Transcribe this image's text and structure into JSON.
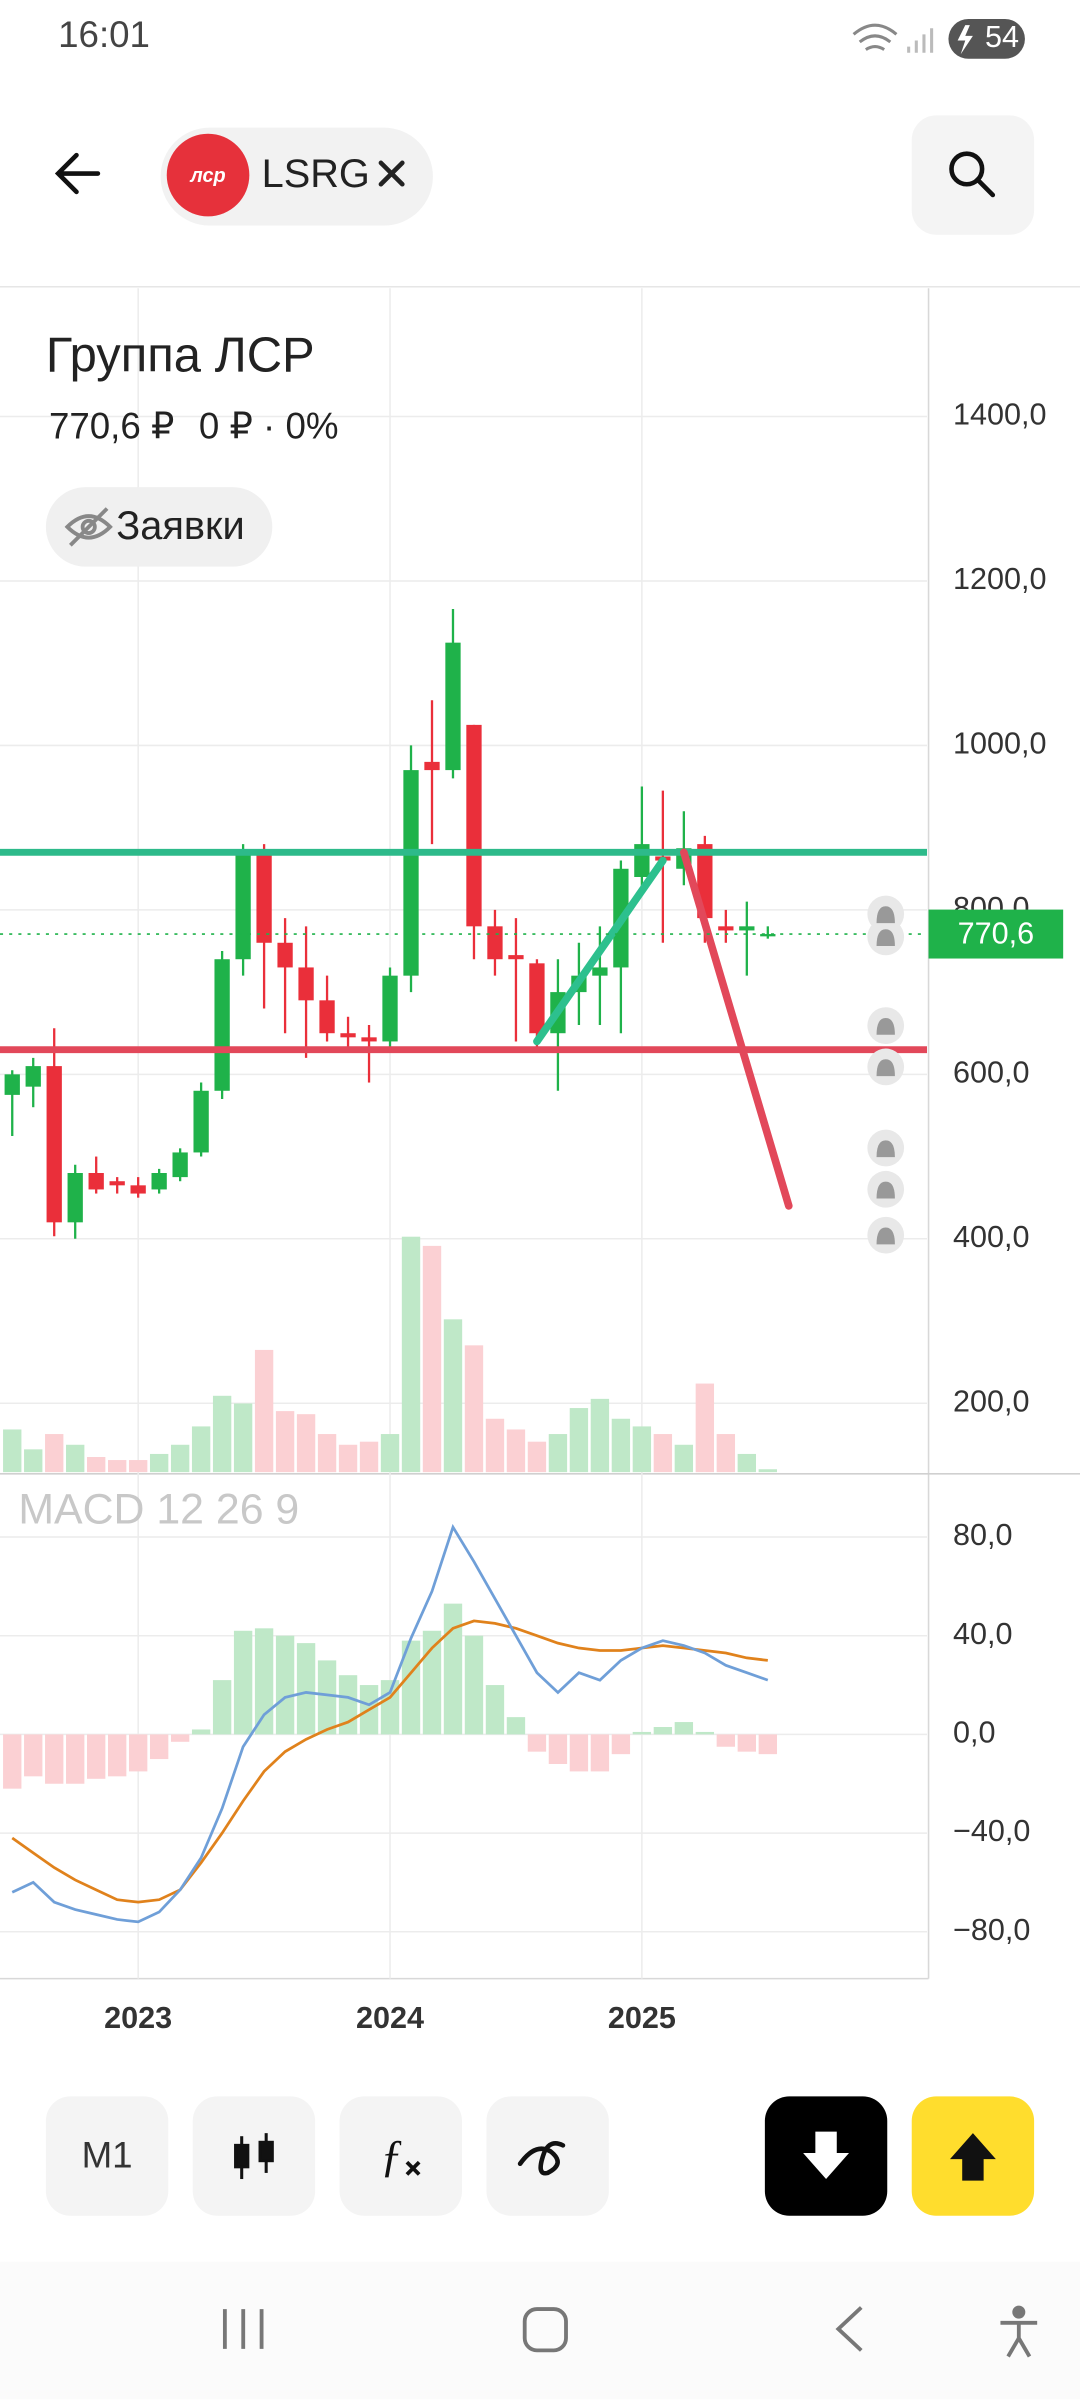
{
  "status_bar": {
    "time": "16:01",
    "battery": "54"
  },
  "header": {
    "logo": "лср",
    "ticker": "LSRG"
  },
  "quote": {
    "price": "770,6 ₽",
    "change": "0 ₽ · 0%"
  },
  "orders_button": "Заявки",
  "period_button": "M1",
  "chart_data": [
    {
      "type": "candlestick",
      "title": "Группа ЛСР",
      "categories": [
        null,
        null,
        null,
        null,
        null,
        null,
        "2023",
        null,
        null,
        null,
        null,
        null,
        null,
        null,
        null,
        null,
        null,
        null,
        "2024",
        null,
        null,
        null,
        null,
        null,
        null,
        null,
        null,
        null,
        null,
        null,
        "2025",
        null,
        null,
        null,
        null,
        null,
        null
      ],
      "open": [
        575,
        585,
        610,
        420,
        480,
        470,
        465,
        460,
        475,
        505,
        580,
        740,
        870,
        760,
        730,
        690,
        650,
        645,
        640,
        720,
        980,
        970,
        1025,
        780,
        745,
        735,
        650,
        700,
        720,
        730,
        840,
        865,
        850,
        880,
        780,
        775,
        770.6
      ],
      "high": [
        605,
        620,
        656,
        490,
        500,
        475,
        475,
        485,
        510,
        590,
        750,
        880,
        880,
        790,
        780,
        720,
        670,
        660,
        730,
        1000,
        1055,
        1166,
        1025,
        800,
        790,
        740,
        740,
        760,
        780,
        860,
        950,
        945,
        920,
        890,
        800,
        810,
        780
      ],
      "low": [
        525,
        560,
        403,
        400,
        455,
        455,
        450,
        455,
        470,
        500,
        570,
        720,
        680,
        650,
        620,
        640,
        630,
        590,
        630,
        700,
        880,
        960,
        740,
        720,
        640,
        630,
        580,
        660,
        660,
        650,
        820,
        760,
        830,
        760,
        760,
        720,
        765
      ],
      "close": [
        600,
        610,
        420,
        480,
        460,
        465,
        455,
        480,
        505,
        580,
        740,
        870,
        760,
        730,
        690,
        650,
        645,
        640,
        720,
        970,
        970,
        1125,
        780,
        740,
        740,
        650,
        700,
        720,
        730,
        850,
        880,
        860,
        875,
        790,
        775,
        780,
        770.6
      ],
      "up_color": "#1fb24a",
      "down_color": "#ea2f3a",
      "ylim": [
        116,
        1556
      ],
      "yticks": [
        {
          "value": 200,
          "label": "200,0"
        },
        {
          "value": 400,
          "label": "400,0"
        },
        {
          "value": 600,
          "label": "600,0"
        },
        {
          "value": 800,
          "label": "800,0"
        },
        {
          "value": 1000,
          "label": "1000,0"
        },
        {
          "value": 1200,
          "label": "1200,0"
        },
        {
          "value": 1400,
          "label": "1400,0"
        }
      ],
      "grid": true,
      "volume": {
        "values": [
          28,
          15,
          25,
          18,
          10,
          8,
          8,
          12,
          18,
          30,
          50,
          45,
          80,
          40,
          38,
          25,
          18,
          20,
          25,
          154,
          148,
          100,
          83,
          35,
          28,
          20,
          25,
          42,
          48,
          35,
          30,
          25,
          18,
          58,
          25,
          12,
          2
        ],
        "lim": [
          0,
          160
        ],
        "up_color": "#bfe8c8",
        "down_color": "#fbd0d3"
      },
      "last_price": {
        "value": 770.6,
        "label": "770,6",
        "color": "#1fb24a"
      },
      "levels": [
        {
          "value": 870,
          "color": "#2dba8a"
        },
        {
          "value": 630,
          "color": "#e2485a"
        }
      ],
      "trend_lines": [
        {
          "x": [
            25,
            31
          ],
          "values": [
            640,
            860
          ],
          "color": "#2dc08e"
        },
        {
          "x": [
            32,
            37
          ],
          "values": [
            870,
            440
          ],
          "color": "#e2485a"
        }
      ]
    },
    {
      "type": "macd",
      "title": "MACD 12 26 9",
      "histogram": [
        -22,
        -17,
        -20,
        -20,
        -18,
        -17,
        -15,
        -10,
        -3,
        2,
        22,
        42,
        43,
        40,
        37,
        30,
        24,
        20,
        22,
        38,
        42,
        53,
        40,
        20,
        7,
        -7,
        -12,
        -15,
        -15,
        -8,
        1,
        3,
        5,
        1,
        -5,
        -7,
        -8
      ],
      "macd": [
        -64,
        -60,
        -68,
        -71,
        -73,
        -75,
        -76,
        -72,
        -63,
        -50,
        -30,
        -5,
        8,
        15,
        17,
        16,
        15,
        12,
        17,
        39,
        58,
        84,
        70,
        55,
        40,
        25,
        17,
        25,
        22,
        30,
        35,
        38,
        36,
        33,
        28,
        25,
        22
      ],
      "signal": [
        -42,
        -48,
        -54,
        -59,
        -63,
        -67,
        -68,
        -67,
        -63,
        -52,
        -40,
        -27,
        -15,
        -7,
        -2,
        2,
        5,
        10,
        15,
        25,
        35,
        43,
        46,
        45,
        43,
        40,
        37,
        35,
        34,
        34,
        35,
        36,
        35,
        34,
        33,
        31,
        30
      ],
      "hist_up_color": "#bfe8c8",
      "hist_down_color": "#fbd0d3",
      "macd_color": "#6f9fd8",
      "signal_color": "#e0821c",
      "ylim": [
        -99,
        105
      ],
      "yticks": [
        {
          "value": -80,
          "label": "−80,0"
        },
        {
          "value": -40,
          "label": "−40,0"
        },
        {
          "value": 0,
          "label": "0,0"
        },
        {
          "value": 40,
          "label": "40,0"
        },
        {
          "value": 80,
          "label": "80,0"
        }
      ],
      "grid": true
    }
  ]
}
